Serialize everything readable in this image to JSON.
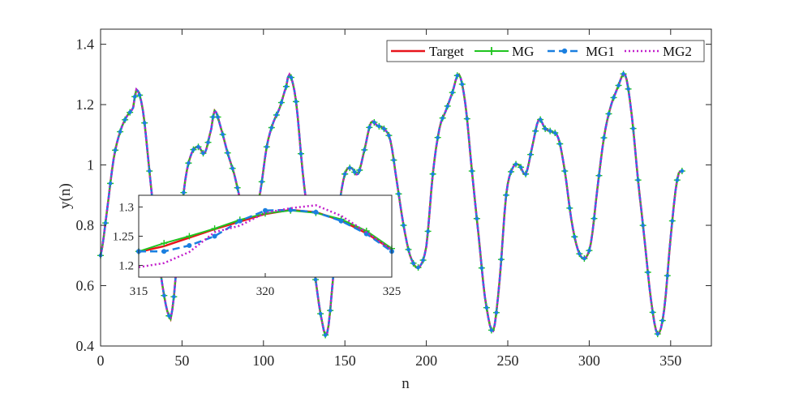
{
  "chart_data": {
    "type": "line",
    "title": "",
    "xlabel": "n",
    "ylabel": "y(n)",
    "xlim": [
      0,
      375
    ],
    "ylim": [
      0.4,
      1.45
    ],
    "xticks": [
      "0",
      "50",
      "100",
      "150",
      "200",
      "250",
      "300",
      "350"
    ],
    "yticks": [
      "0.4",
      "0.6",
      "0.8",
      "1",
      "1.2",
      "1.4"
    ],
    "grid": false,
    "legend_position": "top-right",
    "colors": {
      "Target": "#e8141b",
      "MG": "#1fc41f",
      "MG1": "#1a7fe0",
      "MG2": "#c21ecc"
    },
    "series": [
      {
        "name": "Target",
        "style": "solid",
        "marker": "none"
      },
      {
        "name": "MG",
        "style": "solid",
        "marker": "plus"
      },
      {
        "name": "MG1",
        "style": "dashed",
        "marker": "dot"
      },
      {
        "name": "MG2",
        "style": "dotted",
        "marker": "none"
      }
    ],
    "keypoints": {
      "x": [
        0,
        4,
        8,
        12,
        16,
        20,
        22,
        26,
        30,
        34,
        38,
        42,
        44,
        48,
        52,
        56,
        60,
        64,
        68,
        70,
        74,
        78,
        82,
        86,
        90,
        94,
        98,
        102,
        106,
        110,
        114,
        116,
        120,
        124,
        128,
        132,
        136,
        139,
        142,
        146,
        150,
        154,
        158,
        162,
        166,
        170,
        174,
        178,
        182,
        186,
        190,
        195,
        200,
        204,
        208,
        212,
        216,
        220,
        224,
        228,
        232,
        236,
        241,
        245,
        249,
        253,
        257,
        261,
        265,
        269,
        273,
        277,
        281,
        285,
        289,
        293,
        297,
        301,
        305,
        309,
        313,
        317,
        322,
        326,
        330,
        334,
        338,
        342,
        346,
        350,
        354,
        357
      ],
      "y": [
        0.7,
        0.85,
        1.02,
        1.11,
        1.16,
        1.19,
        1.25,
        1.18,
        0.98,
        0.77,
        0.6,
        0.5,
        0.52,
        0.75,
        0.95,
        1.04,
        1.06,
        1.04,
        1.12,
        1.18,
        1.12,
        1.04,
        0.97,
        0.88,
        0.82,
        0.83,
        0.91,
        1.06,
        1.14,
        1.19,
        1.26,
        1.3,
        1.21,
        0.98,
        0.8,
        0.62,
        0.48,
        0.44,
        0.58,
        0.84,
        0.97,
        0.99,
        0.97,
        1.05,
        1.14,
        1.13,
        1.12,
        1.08,
        0.94,
        0.8,
        0.7,
        0.66,
        0.73,
        0.97,
        1.12,
        1.18,
        1.24,
        1.3,
        1.2,
        0.98,
        0.77,
        0.56,
        0.45,
        0.62,
        0.9,
        0.99,
        1.0,
        0.97,
        1.06,
        1.15,
        1.12,
        1.11,
        1.09,
        0.98,
        0.82,
        0.72,
        0.69,
        0.74,
        0.92,
        1.09,
        1.19,
        1.25,
        1.3,
        1.17,
        0.95,
        0.75,
        0.55,
        0.44,
        0.52,
        0.76,
        0.95,
        0.98
      ]
    },
    "inset": {
      "xlim": [
        315,
        325
      ],
      "ylim": [
        1.18,
        1.32
      ],
      "xticks": [
        "315",
        "320",
        "325"
      ],
      "yticks": [
        "1.2",
        "1.25",
        "1.3"
      ],
      "series": [
        {
          "name": "Target",
          "x": [
            315,
            316,
            318,
            320,
            321,
            322,
            323,
            324,
            325
          ],
          "y": [
            1.223,
            1.233,
            1.262,
            1.288,
            1.295,
            1.291,
            1.277,
            1.255,
            1.227
          ]
        },
        {
          "name": "MG",
          "x": [
            315,
            316,
            317,
            318,
            319,
            320,
            321,
            322,
            323,
            324,
            325
          ],
          "y": [
            1.224,
            1.238,
            1.25,
            1.263,
            1.278,
            1.289,
            1.294,
            1.29,
            1.279,
            1.259,
            1.229
          ]
        },
        {
          "name": "MG1",
          "x": [
            315,
            316,
            317,
            318,
            319,
            320,
            321,
            322,
            323,
            324,
            325
          ],
          "y": [
            1.224,
            1.224,
            1.234,
            1.25,
            1.276,
            1.294,
            1.295,
            1.291,
            1.276,
            1.254,
            1.224
          ]
        },
        {
          "name": "MG2",
          "x": [
            315,
            316,
            317,
            318,
            319,
            320,
            321,
            322,
            323,
            324,
            325
          ],
          "y": [
            1.197,
            1.204,
            1.223,
            1.257,
            1.268,
            1.29,
            1.298,
            1.303,
            1.285,
            1.257,
            1.227
          ]
        }
      ]
    }
  }
}
